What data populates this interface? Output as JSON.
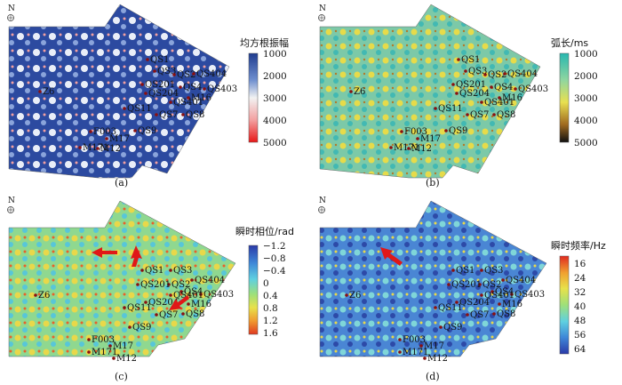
{
  "north_label": "N",
  "panels": [
    {
      "caption": "(a)",
      "colorbar": {
        "title": "均方根振幅",
        "ticks": [
          "1000",
          "2000",
          "3000",
          "4000",
          "5000"
        ],
        "colors": [
          "#1f3c8f",
          "#6f8fcf",
          "#f2f2f2",
          "#f3a0a0",
          "#e81818"
        ]
      }
    },
    {
      "caption": "(b)",
      "colorbar": {
        "title": "弧长/ms",
        "ticks": [
          "1000",
          "2000",
          "3000",
          "4000",
          "5000"
        ],
        "colors": [
          "#28b7b0",
          "#8fd6a0",
          "#e8e050",
          "#a06a20",
          "#101010"
        ]
      }
    },
    {
      "caption": "(c)",
      "colorbar": {
        "title": "瞬时相位/rad",
        "ticks": [
          "−1.2",
          "−0.8",
          "−0.4",
          "0",
          "0.4",
          "0.8",
          "1.2",
          "1.6"
        ],
        "colors": [
          "#2a3aa8",
          "#3f88d8",
          "#5fd0e0",
          "#9ee07a",
          "#e8e14a",
          "#f09a30",
          "#e03a20"
        ]
      }
    },
    {
      "caption": "(d)",
      "colorbar": {
        "title": "瞬时频率/Hz",
        "ticks": [
          "16",
          "24",
          "32",
          "40",
          "48",
          "56",
          "64"
        ],
        "colors": [
          "#e02a20",
          "#f0a030",
          "#e8e14a",
          "#9ee07a",
          "#5fd0e0",
          "#3f88d8",
          "#2a3aa8"
        ]
      }
    }
  ],
  "wells": [
    "QS1",
    "QS3",
    "QS2",
    "QS404",
    "QS201",
    "QS4",
    "QS403",
    "QS204",
    "M16",
    "QS401",
    "QS11",
    "QS7",
    "QS8",
    "QS9",
    "F003",
    "M17",
    "M171",
    "M12",
    "Z6"
  ]
}
